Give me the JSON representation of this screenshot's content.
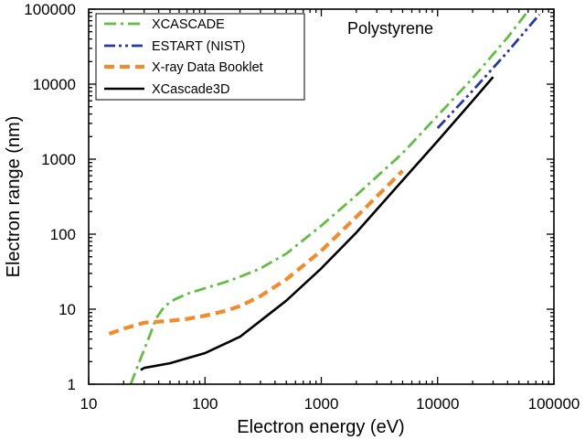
{
  "chart_data": {
    "type": "line",
    "title": "",
    "annotation": "Polystyrene",
    "xlabel": "Electron energy (eV)",
    "ylabel": "Electron range (nm)",
    "xscale": "log",
    "yscale": "log",
    "xlim": [
      10,
      100000
    ],
    "ylim": [
      1,
      100000
    ],
    "x_ticks": [
      "10",
      "100",
      "1000",
      "10000",
      "100000"
    ],
    "y_ticks": [
      "1",
      "10",
      "100",
      "1000",
      "10000",
      "100000"
    ],
    "legend_position": "top-left",
    "grid": false,
    "series": [
      {
        "name": "XCASCADE",
        "color": "#66bb44",
        "dash": "dash-dot",
        "points": [
          [
            23,
            1
          ],
          [
            28,
            2.2
          ],
          [
            33,
            4.2
          ],
          [
            38,
            7.5
          ],
          [
            45,
            11
          ],
          [
            55,
            13.5
          ],
          [
            70,
            16
          ],
          [
            100,
            19
          ],
          [
            150,
            23
          ],
          [
            200,
            27
          ],
          [
            300,
            35
          ],
          [
            500,
            55
          ],
          [
            1000,
            130
          ],
          [
            2000,
            330
          ],
          [
            5000,
            1200
          ],
          [
            10000,
            3800
          ],
          [
            20000,
            12000
          ],
          [
            40000,
            42000
          ],
          [
            60000,
            95000
          ]
        ]
      },
      {
        "name": "ESTART (NIST)",
        "color": "#2a3a9c",
        "dash": "dash-dot-dot",
        "points": [
          [
            10000,
            2600
          ],
          [
            20000,
            8200
          ],
          [
            40000,
            27000
          ],
          [
            75000,
            85000
          ]
        ]
      },
      {
        "name": "X-ray Data Booklet",
        "color": "#f08c30",
        "dash": "dash",
        "points": [
          [
            15,
            4.7
          ],
          [
            20,
            5.5
          ],
          [
            30,
            6.6
          ],
          [
            50,
            7
          ],
          [
            70,
            7.4
          ],
          [
            100,
            8.2
          ],
          [
            150,
            9.5
          ],
          [
            200,
            11
          ],
          [
            300,
            15
          ],
          [
            500,
            25
          ],
          [
            1000,
            60
          ],
          [
            2000,
            170
          ],
          [
            5000,
            700
          ]
        ]
      },
      {
        "name": "XCascade3D",
        "color": "#000000",
        "dash": "solid",
        "points": [
          [
            28,
            1.55
          ],
          [
            30,
            1.65
          ],
          [
            50,
            1.9
          ],
          [
            100,
            2.6
          ],
          [
            200,
            4.3
          ],
          [
            300,
            7
          ],
          [
            500,
            13
          ],
          [
            1000,
            35
          ],
          [
            2000,
            105
          ],
          [
            5000,
            520
          ],
          [
            10000,
            1750
          ],
          [
            20000,
            6000
          ],
          [
            30000,
            12500
          ]
        ]
      }
    ]
  }
}
